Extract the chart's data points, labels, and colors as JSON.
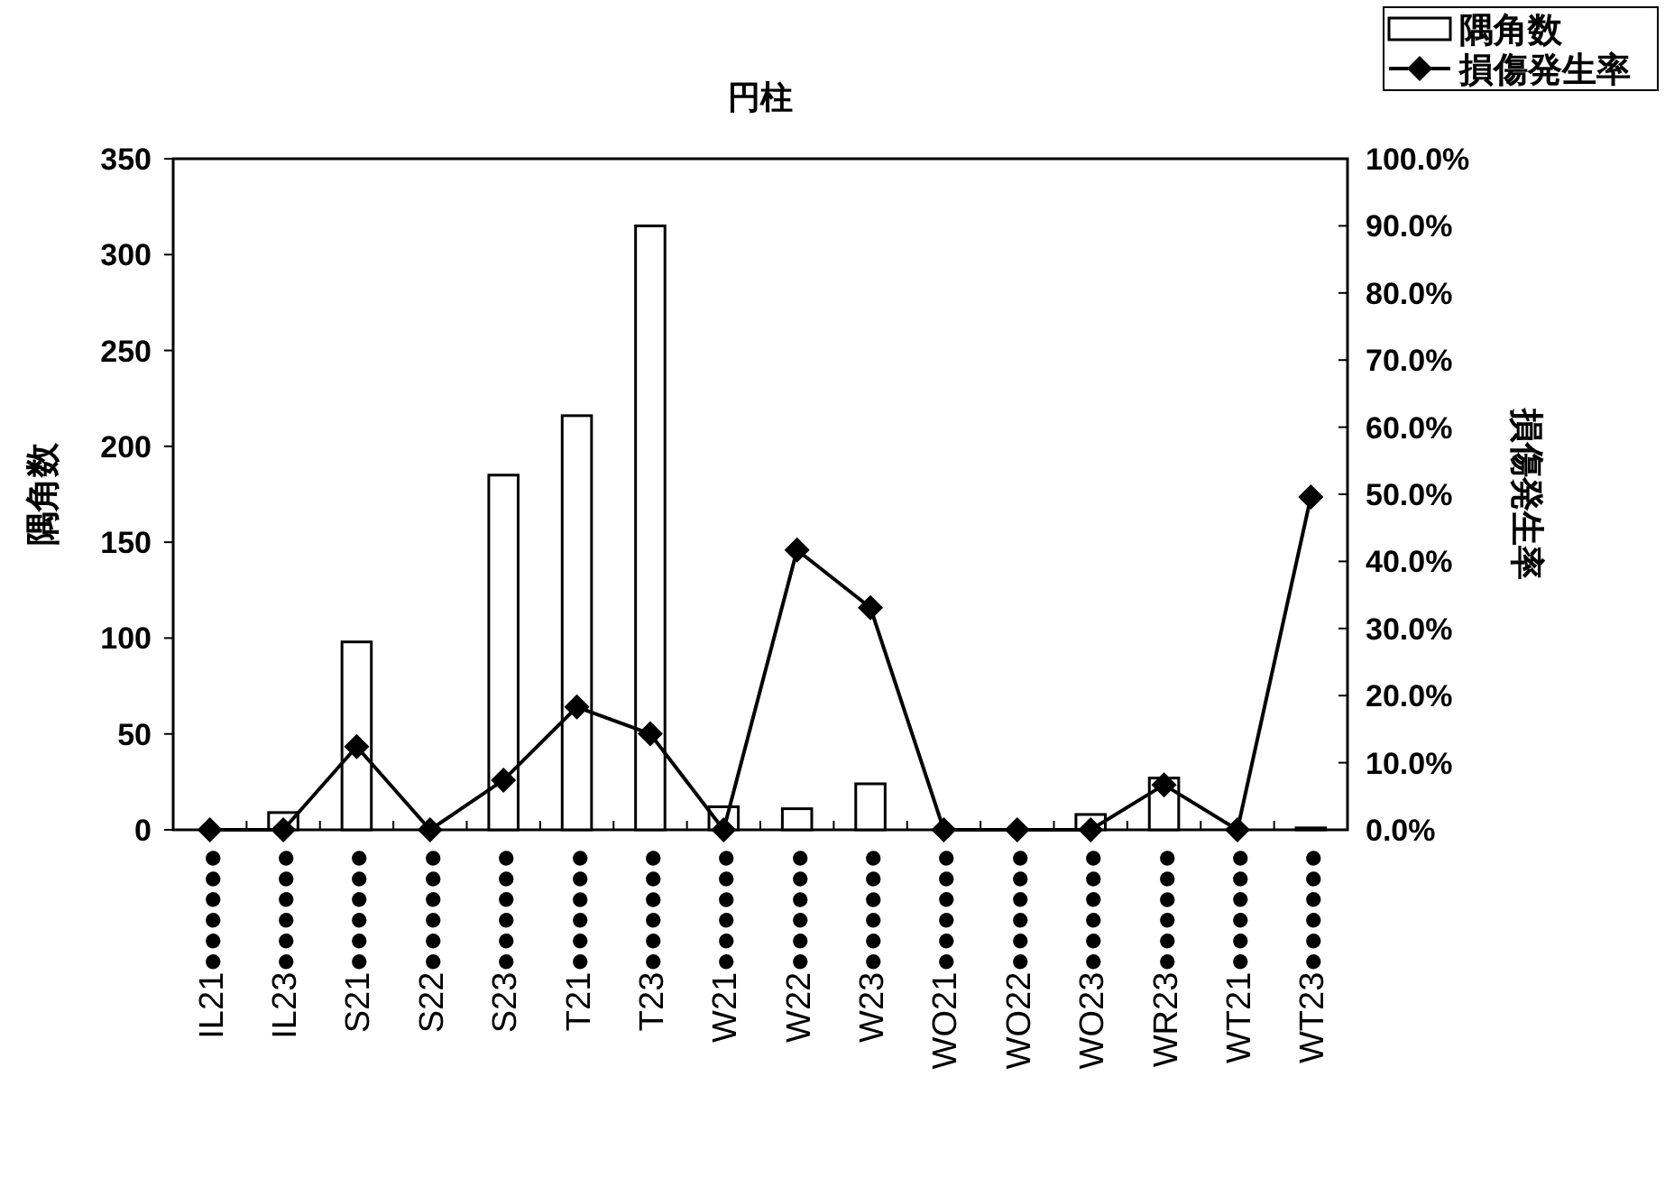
{
  "chart_data": {
    "type": "bar",
    "title": "円柱",
    "ylabel": "隅角数",
    "y2label": "損傷発生率",
    "categories": [
      "IL21●●●●●●",
      "IL23●●●●●●",
      "S21●●●●●●",
      "S22●●●●●●",
      "S23●●●●●●",
      "T21●●●●●●",
      "T23●●●●●●",
      "W21●●●●●●",
      "W22●●●●●●",
      "W23●●●●●●",
      "WO21●●●●●●",
      "WO22●●●●●●",
      "WO23●●●●●●",
      "WR23●●●●●●",
      "WT21●●●●●●",
      "WT23●●●●●●"
    ],
    "series": [
      {
        "name": "隅角数",
        "color": "#ffffff",
        "values": [
          0,
          9,
          98,
          0,
          185,
          216,
          315,
          12,
          11,
          24,
          0,
          0,
          8,
          27,
          0,
          1
        ]
      },
      {
        "name": "損傷発生率",
        "type": "line",
        "axis": "y2",
        "color": "#000000",
        "marker": "diamond",
        "line_style": "solid",
        "values": [
          0,
          0,
          12.4,
          0,
          7.4,
          18.3,
          14.3,
          0,
          41.7,
          33.1,
          0,
          0,
          0,
          6.7,
          0,
          49.6
        ]
      }
    ],
    "ylim": [
      0,
      350
    ],
    "yticks": [
      0,
      50,
      100,
      150,
      200,
      250,
      300,
      350
    ],
    "y2lim": [
      0,
      100
    ],
    "y2ticks": [
      {
        "value": 0,
        "label": "0.0%"
      },
      {
        "value": 10,
        "label": "10.0%"
      },
      {
        "value": 20,
        "label": "20.0%"
      },
      {
        "value": 30,
        "label": "30.0%"
      },
      {
        "value": 40,
        "label": "40.0%"
      },
      {
        "value": 50,
        "label": "50.0%"
      },
      {
        "value": 60,
        "label": "60.0%"
      },
      {
        "value": 70,
        "label": "70.0%"
      },
      {
        "value": 80,
        "label": "80.0%"
      },
      {
        "value": 90,
        "label": "90.0%"
      },
      {
        "value": 100,
        "label": "100.0%"
      }
    ],
    "grid": false,
    "legend": "top right"
  }
}
